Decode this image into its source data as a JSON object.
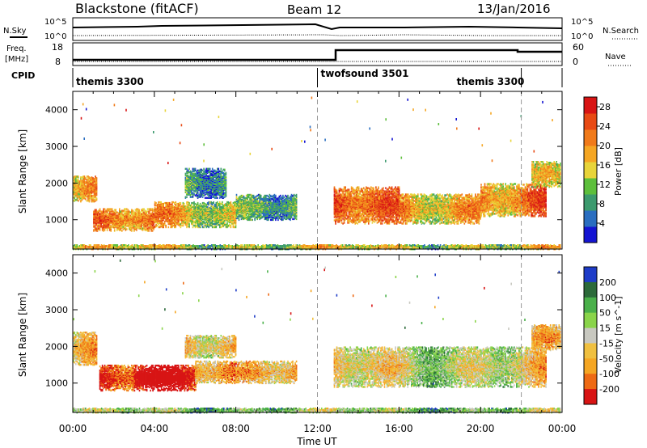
{
  "header": {
    "station": "Blackstone (fitACF)",
    "beam": "Beam 12",
    "date": "13/Jan/2016"
  },
  "top_panels": {
    "nsky_label": "N.Sky",
    "nsearch_label": "N.Search",
    "freq_label_line1": "Freq.",
    "freq_label_line2": "[MHz]",
    "nave_label": "Nave",
    "cpid_label": "CPID",
    "noise_ticks": [
      "10^5",
      "10^0"
    ],
    "noise_ticks_right": [
      "10^5",
      "10^0"
    ],
    "freq_ticks": [
      "18",
      "8"
    ],
    "nave_ticks": [
      "60",
      "0"
    ],
    "cpid_segments": [
      {
        "name": "themis 3300",
        "start_hour": 0,
        "end_hour": 12
      },
      {
        "name": "twofsound 3501",
        "start_hour": 12,
        "end_hour": 22
      },
      {
        "name": "themis 3300",
        "start_hour": 22,
        "end_hour": 24
      }
    ]
  },
  "chart_data": [
    {
      "type": "heatmap",
      "name": "power",
      "ylabel": "Slant Range [km]",
      "x_range_hours": [
        0,
        24
      ],
      "ylim": [
        200,
        4500
      ],
      "y_ticks": [
        "1000",
        "2000",
        "3000",
        "4000"
      ],
      "colorbar_label": "Power [dB]",
      "colorbar_ticks": [
        "4",
        "8",
        "12",
        "16",
        "20",
        "24",
        "28"
      ],
      "colorbar_range": [
        0,
        30
      ],
      "colors": [
        "#1414d2",
        "#2a6ec0",
        "#3c9a6e",
        "#5dbf3c",
        "#e8d43a",
        "#f5a623",
        "#f07a1a",
        "#e84a14",
        "#d81414"
      ],
      "regions": [
        {
          "t0": 0.0,
          "t1": 1.2,
          "r0": 1500,
          "r1": 2200,
          "level": 0.45
        },
        {
          "t0": 1.0,
          "t1": 4.0,
          "r0": 700,
          "r1": 1300,
          "level": 0.55
        },
        {
          "t0": 4.0,
          "t1": 8.0,
          "r0": 800,
          "r1": 1500,
          "level": 0.5
        },
        {
          "t0": 5.5,
          "t1": 7.5,
          "r0": 1600,
          "r1": 2400,
          "level": 0.3
        },
        {
          "t0": 8.0,
          "t1": 11.0,
          "r0": 1000,
          "r1": 1700,
          "level": 0.3
        },
        {
          "t0": 12.8,
          "t1": 16.0,
          "r0": 900,
          "r1": 1900,
          "level": 0.65
        },
        {
          "t0": 16.0,
          "t1": 20.0,
          "r0": 900,
          "r1": 1700,
          "level": 0.6
        },
        {
          "t0": 20.0,
          "t1": 23.2,
          "r0": 1100,
          "r1": 2000,
          "level": 0.6
        },
        {
          "t0": 22.5,
          "t1": 23.9,
          "r0": 1900,
          "r1": 2600,
          "level": 0.3
        },
        {
          "t0": 0.0,
          "t1": 23.9,
          "r0": 200,
          "r1": 330,
          "level": 0.4
        }
      ],
      "dashed_lines_hours": [
        12,
        22
      ]
    },
    {
      "type": "heatmap",
      "name": "velocity",
      "xlabel": "Time UT",
      "ylabel": "Slant Range [km]",
      "x_range_hours": [
        0,
        24
      ],
      "x_ticks": [
        "00:00",
        "04:00",
        "08:00",
        "12:00",
        "16:00",
        "20:00",
        "00:00"
      ],
      "ylim": [
        200,
        4500
      ],
      "y_ticks": [
        "1000",
        "2000",
        "3000",
        "4000"
      ],
      "colorbar_label": "Velocity [m s^-1]",
      "colorbar_ticks": [
        "200",
        "100",
        "50",
        "15",
        "-15",
        "-50",
        "-100",
        "-200"
      ],
      "colors": [
        "#1e3cc8",
        "#2c6a3a",
        "#4ab04a",
        "#8ad44a",
        "#c8c8c0",
        "#f0c040",
        "#f5a623",
        "#ee6a14",
        "#d81414"
      ],
      "regions": [
        {
          "t0": 0.0,
          "t1": 1.2,
          "r0": 1500,
          "r1": 2400,
          "level": 0.5
        },
        {
          "t0": 1.3,
          "t1": 3.0,
          "r0": 800,
          "r1": 1500,
          "level": 0.75
        },
        {
          "t0": 3.0,
          "t1": 6.0,
          "r0": 800,
          "r1": 1500,
          "level": 0.95
        },
        {
          "t0": 6.0,
          "t1": 8.0,
          "r0": 1000,
          "r1": 1600,
          "level": 0.75
        },
        {
          "t0": 5.5,
          "t1": 8.0,
          "r0": 1700,
          "r1": 2300,
          "level": 0.62
        },
        {
          "t0": 8.0,
          "t1": 11.0,
          "r0": 1000,
          "r1": 1600,
          "level": 0.65
        },
        {
          "t0": 12.8,
          "t1": 23.2,
          "r0": 900,
          "r1": 2000,
          "level": 0.45
        },
        {
          "t0": 22.5,
          "t1": 23.9,
          "r0": 1900,
          "r1": 2600,
          "level": 0.45
        },
        {
          "t0": 0.0,
          "t1": 23.9,
          "r0": 200,
          "r1": 330,
          "level": 0.3
        }
      ],
      "dashed_lines_hours": [
        12,
        22
      ]
    }
  ]
}
